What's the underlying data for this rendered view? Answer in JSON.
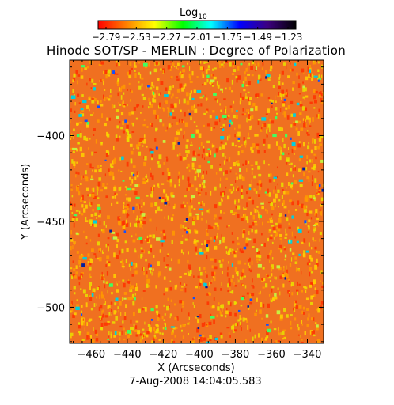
{
  "chart_data": {
    "type": "heatmap",
    "title": "Hinode SOT/SP - MERLIN : Degree of Polarization",
    "xlabel": "X (Arcseconds)",
    "ylabel": "Y (Arcseconds)",
    "date": "7-Aug-2008 14:04:05.583",
    "colorbar": {
      "label_base": "Log",
      "label_sub": "10",
      "ticks": [
        "-2.79",
        "-2.53",
        "-2.27",
        "-2.01",
        "-1.75",
        "-1.49",
        "-1.23"
      ],
      "range": [
        -2.79,
        -1.23
      ],
      "colors": [
        "#ff0000",
        "#ff8000",
        "#ffff00",
        "#00ff00",
        "#00ffff",
        "#0000ff",
        "#3c0080",
        "#000000"
      ]
    },
    "xlim": [
      -472,
      -331
    ],
    "ylim": [
      -521,
      -356
    ],
    "xticks": [
      -460,
      -440,
      -420,
      -400,
      -380,
      -360,
      -340
    ],
    "xtick_labels": [
      "-460",
      "-440",
      "-420",
      "-400",
      "-380",
      "-360",
      "-340"
    ],
    "yticks": [
      -400,
      -450,
      -500
    ],
    "ytick_labels": [
      "-400",
      "-450",
      "-500"
    ],
    "field": {
      "base_color": "#f07020",
      "speckle_colors": [
        "#ff3000",
        "#ff9a00",
        "#ffd200",
        "#e8e000"
      ],
      "patch_colors": [
        "#c8f040",
        "#40ff60",
        "#00d0e0"
      ],
      "dark_spot_colors": [
        "#1050ff",
        "#0020a0"
      ]
    }
  }
}
